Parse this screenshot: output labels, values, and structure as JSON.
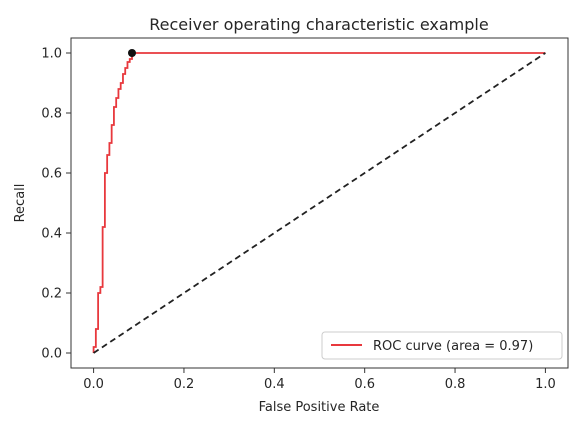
{
  "chart_data": {
    "type": "line",
    "title": "Receiver operating characteristic example",
    "xlabel": "False Positive Rate",
    "ylabel": "Recall",
    "xlim": [
      -0.05,
      1.05
    ],
    "ylim": [
      -0.05,
      1.05
    ],
    "xticks": [
      "0.0",
      "0.2",
      "0.4",
      "0.6",
      "0.8",
      "1.0"
    ],
    "yticks": [
      "0.0",
      "0.2",
      "0.4",
      "0.6",
      "0.8",
      "1.0"
    ],
    "grid": false,
    "legend_position": "lower-right",
    "series": [
      {
        "name": "ROC curve (area = 0.97)",
        "color": "#e8383d",
        "style": "step",
        "x": [
          0.0,
          0.0,
          0.005,
          0.005,
          0.01,
          0.01,
          0.015,
          0.015,
          0.02,
          0.02,
          0.025,
          0.025,
          0.03,
          0.03,
          0.035,
          0.035,
          0.04,
          0.04,
          0.045,
          0.045,
          0.05,
          0.05,
          0.055,
          0.055,
          0.06,
          0.06,
          0.065,
          0.065,
          0.07,
          0.07,
          0.075,
          0.075,
          0.08,
          0.08,
          0.085,
          0.085,
          1.0
        ],
        "y": [
          0.0,
          0.02,
          0.02,
          0.08,
          0.08,
          0.2,
          0.2,
          0.22,
          0.22,
          0.42,
          0.42,
          0.6,
          0.6,
          0.66,
          0.66,
          0.7,
          0.7,
          0.76,
          0.76,
          0.82,
          0.82,
          0.85,
          0.85,
          0.88,
          0.88,
          0.9,
          0.9,
          0.93,
          0.93,
          0.95,
          0.95,
          0.97,
          0.97,
          0.98,
          0.98,
          1.0,
          1.0
        ]
      },
      {
        "name": "",
        "color": "#222222",
        "style": "dashed",
        "x": [
          0.0,
          1.0
        ],
        "y": [
          0.0,
          1.0
        ]
      }
    ],
    "marker": {
      "x": 0.085,
      "y": 1.0,
      "color": "#111111"
    }
  }
}
